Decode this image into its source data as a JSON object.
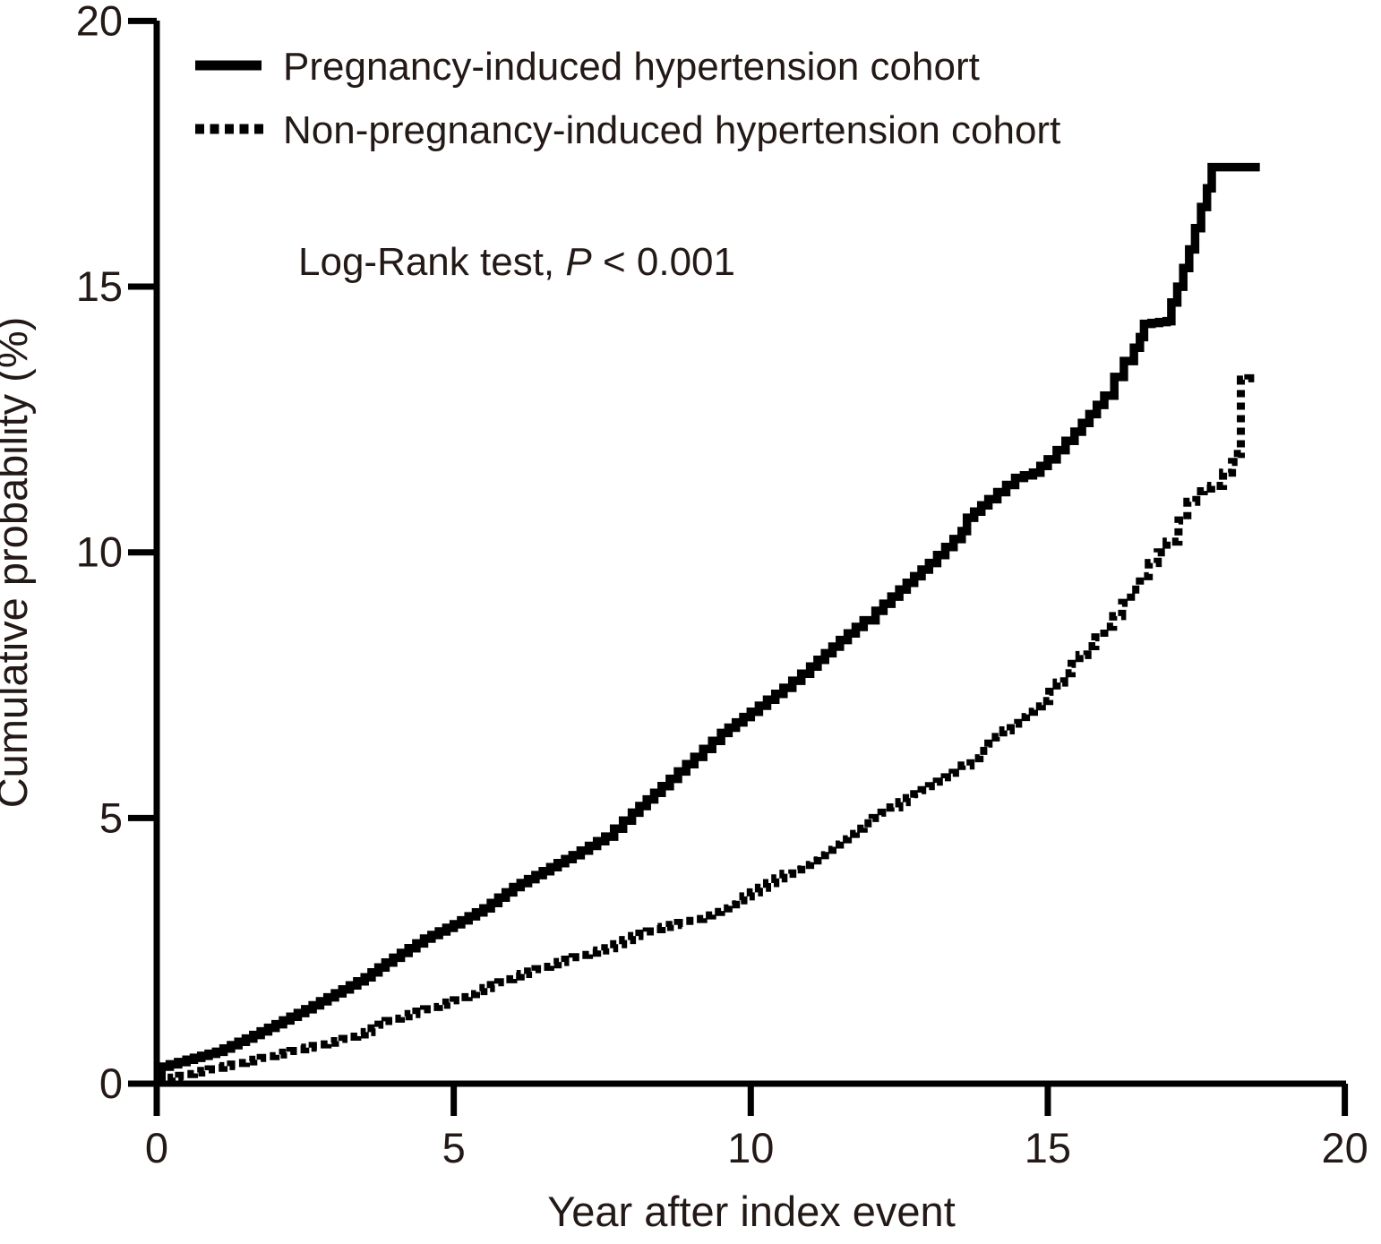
{
  "figure": {
    "legend": {
      "items": [
        {
          "label": "Pregnancy-induced hypertension cohort",
          "line_style": "solid"
        },
        {
          "label": "Non-pregnancy-induced hypertension cohort",
          "line_style": "dotted"
        }
      ]
    },
    "annotation": {
      "prefix": "Log-Rank test, ",
      "italic": "P",
      "suffix": " < 0.001"
    },
    "line_color": "#000000",
    "text_color": "#231916"
  },
  "chart_data": {
    "type": "line",
    "subtype": "kaplan-meier-cumulative-incidence",
    "title": "",
    "xlabel": "Year after index event",
    "ylabel": "Cumulative probability (%)",
    "xlim": [
      0,
      20
    ],
    "ylim": [
      0,
      20
    ],
    "x_ticks": [
      0,
      5,
      10,
      15,
      20
    ],
    "y_ticks": [
      0,
      5,
      10,
      15,
      20
    ],
    "x_tick_labels": [
      "0",
      "5",
      "10",
      "15",
      "20"
    ],
    "y_tick_labels": [
      "0",
      "5",
      "10",
      "15",
      "20"
    ],
    "grid": false,
    "legend_position": "top-left-inside",
    "annotation": "Log-Rank test, P < 0.001",
    "series": [
      {
        "name": "Pregnancy-induced hypertension cohort",
        "line": "solid",
        "color": "#000000",
        "points": [
          [
            0,
            0.1
          ],
          [
            0.08,
            0.32
          ],
          [
            0.5,
            0.45
          ],
          [
            1,
            0.6
          ],
          [
            1.5,
            0.85
          ],
          [
            2,
            1.12
          ],
          [
            2.5,
            1.4
          ],
          [
            3,
            1.7
          ],
          [
            3.5,
            2.0
          ],
          [
            3.85,
            2.28
          ],
          [
            4.5,
            2.73
          ],
          [
            5,
            3.0
          ],
          [
            5.5,
            3.3
          ],
          [
            6,
            3.7
          ],
          [
            6.5,
            4.0
          ],
          [
            7,
            4.3
          ],
          [
            7.55,
            4.65
          ],
          [
            8,
            5.1
          ],
          [
            8.5,
            5.6
          ],
          [
            9.05,
            6.15
          ],
          [
            9.5,
            6.6
          ],
          [
            10,
            7.0
          ],
          [
            10.55,
            7.45
          ],
          [
            11,
            7.85
          ],
          [
            11.5,
            8.35
          ],
          [
            11.9,
            8.72
          ],
          [
            12.1,
            8.9
          ],
          [
            12.5,
            9.3
          ],
          [
            13,
            9.8
          ],
          [
            13.55,
            10.4
          ],
          [
            13.64,
            10.65
          ],
          [
            14,
            11.0
          ],
          [
            14.45,
            11.4
          ],
          [
            14.75,
            11.5
          ],
          [
            15,
            11.75
          ],
          [
            15.45,
            12.27
          ],
          [
            15.7,
            12.6
          ],
          [
            15.95,
            12.95
          ],
          [
            16.12,
            13.3
          ],
          [
            16.28,
            13.6
          ],
          [
            16.45,
            13.85
          ],
          [
            16.55,
            14.05
          ],
          [
            16.62,
            14.3
          ],
          [
            17.0,
            14.35
          ],
          [
            17.08,
            14.7
          ],
          [
            17.18,
            15.0
          ],
          [
            17.28,
            15.35
          ],
          [
            17.38,
            15.7
          ],
          [
            17.48,
            16.1
          ],
          [
            17.58,
            16.5
          ],
          [
            17.68,
            16.85
          ],
          [
            17.76,
            17.25
          ],
          [
            18.57,
            17.25
          ]
        ]
      },
      {
        "name": "Non-pregnancy-induced hypertension cohort",
        "line": "dotted",
        "color": "#000000",
        "points": [
          [
            0,
            0.05
          ],
          [
            0.5,
            0.18
          ],
          [
            1,
            0.3
          ],
          [
            1.5,
            0.42
          ],
          [
            2,
            0.55
          ],
          [
            2.5,
            0.68
          ],
          [
            3,
            0.8
          ],
          [
            3.5,
            0.97
          ],
          [
            3.85,
            1.18
          ],
          [
            4.5,
            1.4
          ],
          [
            5,
            1.57
          ],
          [
            5.5,
            1.8
          ],
          [
            6,
            2.02
          ],
          [
            6.5,
            2.2
          ],
          [
            7,
            2.38
          ],
          [
            7.55,
            2.55
          ],
          [
            8,
            2.78
          ],
          [
            8.5,
            2.95
          ],
          [
            9.05,
            3.1
          ],
          [
            9.5,
            3.3
          ],
          [
            10,
            3.6
          ],
          [
            10.55,
            3.95
          ],
          [
            11,
            4.2
          ],
          [
            11.5,
            4.6
          ],
          [
            11.9,
            4.9
          ],
          [
            12.5,
            5.3
          ],
          [
            13,
            5.6
          ],
          [
            13.4,
            5.85
          ],
          [
            14,
            6.4
          ],
          [
            14.5,
            6.9
          ],
          [
            14.9,
            7.2
          ],
          [
            15.4,
            7.9
          ],
          [
            15.8,
            8.4
          ],
          [
            16.1,
            8.8
          ],
          [
            16.4,
            9.3
          ],
          [
            16.7,
            9.8
          ],
          [
            17.0,
            10.2
          ],
          [
            17.2,
            10.6
          ],
          [
            17.35,
            10.95
          ],
          [
            17.5,
            11.15
          ],
          [
            17.75,
            11.25
          ],
          [
            17.95,
            11.5
          ],
          [
            18.1,
            11.7
          ],
          [
            18.2,
            11.85
          ],
          [
            18.25,
            13.25
          ],
          [
            18.5,
            13.3
          ]
        ]
      }
    ]
  }
}
